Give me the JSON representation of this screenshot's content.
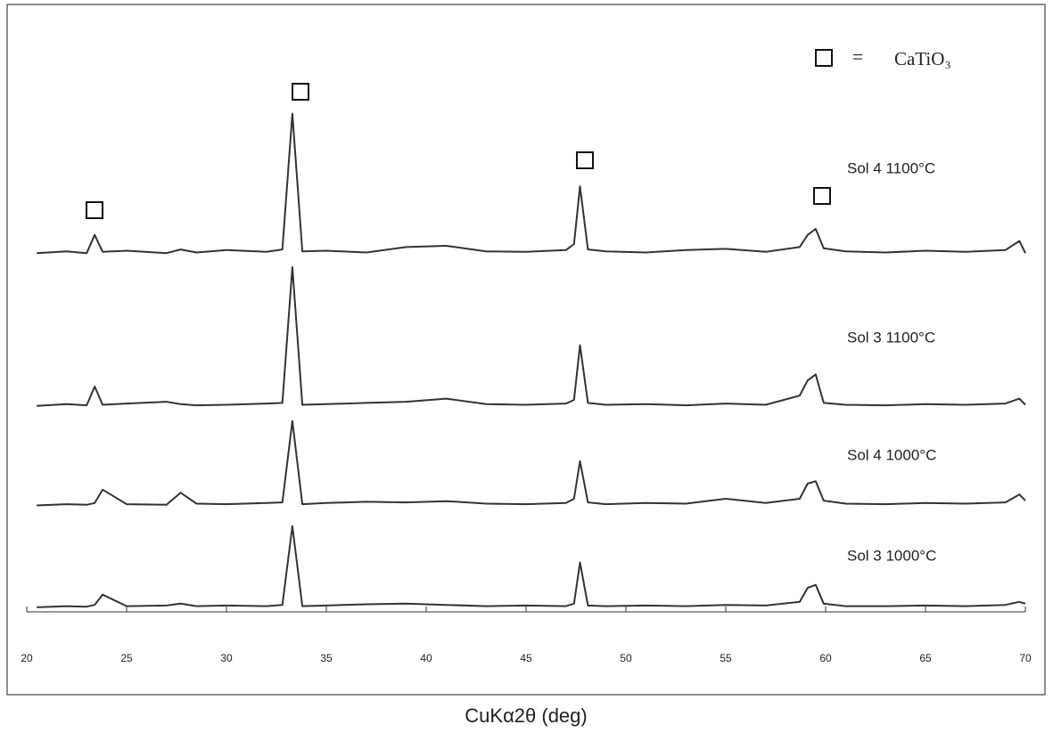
{
  "chart_data": {
    "type": "line",
    "x_label": "CuKα2θ (deg)",
    "legend_label": "CaTiO₃",
    "legend_symbol": "=",
    "xlim": [
      20,
      70
    ],
    "xticks": [
      20,
      25,
      30,
      35,
      40,
      45,
      50,
      55,
      60,
      65,
      70
    ],
    "ylim": [
      0,
      100
    ],
    "x": [
      20.5,
      22,
      23,
      23.4,
      23.8,
      25,
      27,
      27.7,
      28.5,
      30,
      32,
      32.8,
      33.3,
      33.8,
      35,
      37,
      39,
      41,
      43,
      45,
      47,
      47.4,
      47.7,
      48.1,
      49,
      51,
      53,
      55,
      57,
      58.7,
      59.1,
      59.5,
      59.9,
      61,
      63,
      65,
      67,
      69,
      69.7,
      70
    ],
    "series": [
      {
        "name": "Sol 4 1100°C",
        "color": "#333333",
        "values": [
          59,
          59.3,
          59,
          62,
          59.2,
          59.4,
          59,
          59.6,
          59.1,
          59.5,
          59.2,
          59.6,
          82,
          59.3,
          59.4,
          59.1,
          60,
          60.2,
          59.3,
          59.2,
          59.5,
          60.5,
          70,
          59.6,
          59.3,
          59.1,
          59.5,
          59.7,
          59.2,
          60,
          62,
          63,
          59.8,
          59.3,
          59.1,
          59.4,
          59.2,
          59.5,
          61,
          59
        ]
      },
      {
        "name": "Sol 3 1100°C",
        "color": "#333333",
        "values": [
          33.8,
          34.1,
          33.9,
          37,
          34,
          34.2,
          34.5,
          34.1,
          33.9,
          34,
          34.2,
          34.3,
          56.7,
          34,
          34.1,
          34.3,
          34.5,
          35,
          34.1,
          34,
          34.2,
          34.8,
          43.8,
          34.3,
          34,
          34.1,
          33.9,
          34.2,
          34,
          35.5,
          38,
          39,
          34.3,
          34,
          33.9,
          34.1,
          34,
          34.2,
          35,
          34
        ]
      },
      {
        "name": "Sol 4 1000°C",
        "color": "#333333",
        "values": [
          17.4,
          17.6,
          17.5,
          17.8,
          20,
          17.6,
          17.5,
          19.5,
          17.7,
          17.6,
          17.8,
          17.9,
          31.3,
          17.6,
          17.8,
          18,
          17.9,
          18.1,
          17.7,
          17.6,
          17.8,
          18.5,
          24.7,
          17.9,
          17.6,
          17.8,
          17.7,
          18.5,
          17.8,
          18.5,
          21,
          21.4,
          18.2,
          17.7,
          17.6,
          17.8,
          17.7,
          17.9,
          19.2,
          18.2
        ]
      },
      {
        "name": "Sol 3 1000°C",
        "color": "#333333",
        "values": [
          0.6,
          0.8,
          0.7,
          1,
          2.7,
          0.8,
          0.9,
          1.2,
          0.8,
          0.9,
          0.8,
          1,
          14,
          0.8,
          0.9,
          1.1,
          1.2,
          1,
          0.8,
          0.9,
          0.8,
          1.2,
          8,
          0.9,
          0.8,
          0.9,
          0.8,
          1,
          0.9,
          1.5,
          3.8,
          4.3,
          1.2,
          0.8,
          0.8,
          0.9,
          0.8,
          1,
          1.5,
          1.2
        ]
      }
    ]
  }
}
